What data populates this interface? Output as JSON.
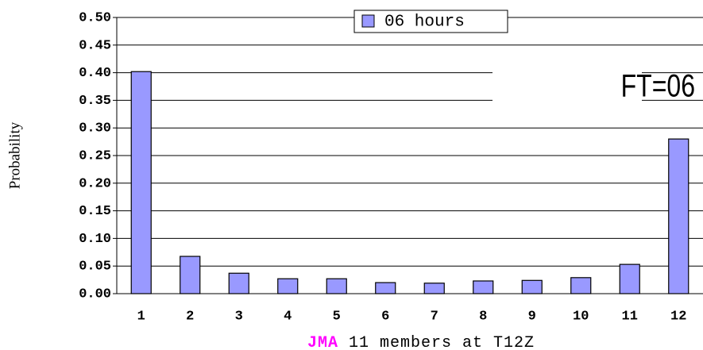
{
  "chart_data": {
    "type": "bar",
    "categories": [
      "1",
      "2",
      "3",
      "4",
      "5",
      "6",
      "7",
      "8",
      "9",
      "10",
      "11",
      "12"
    ],
    "series": [
      {
        "name": "06 hours",
        "color": "#9999ff",
        "values": [
          0.402,
          0.0675,
          0.037,
          0.027,
          0.027,
          0.02,
          0.019,
          0.023,
          0.024,
          0.029,
          0.053,
          0.28
        ]
      }
    ],
    "ylim": [
      0,
      0.5
    ],
    "yticks": [
      {
        "value": 0,
        "label": "0.00"
      },
      {
        "value": 0.05,
        "label": "0.05"
      },
      {
        "value": 0.1,
        "label": "0.10"
      },
      {
        "value": 0.15,
        "label": "0.15"
      },
      {
        "value": 0.2,
        "label": "0.20"
      },
      {
        "value": 0.25,
        "label": "0.25"
      },
      {
        "value": 0.3,
        "label": "0.30"
      },
      {
        "value": 0.35,
        "label": "0.35"
      },
      {
        "value": 0.4,
        "label": "0.40"
      },
      {
        "value": 0.45,
        "label": "0.45"
      },
      {
        "value": 0.5,
        "label": "0.50"
      }
    ],
    "y_label": "Probability",
    "x_label_prefix": "JMA",
    "x_label": "11 members at T12Z",
    "annotation": "FT=06",
    "grid": true
  }
}
